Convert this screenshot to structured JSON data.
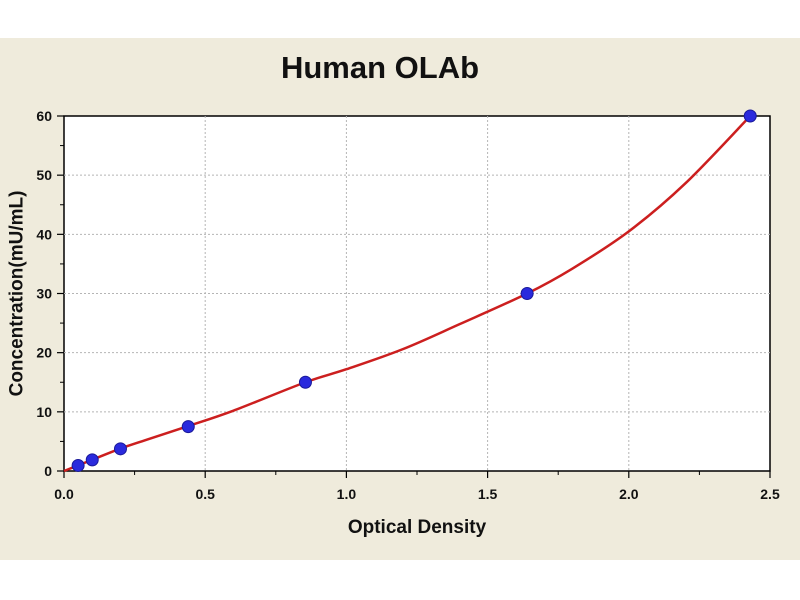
{
  "chart_data": {
    "type": "scatter",
    "title": "Human OLAb",
    "xlabel": "Optical Density",
    "ylabel": "Concentration(mU/mL)",
    "xlim": [
      0,
      2.5
    ],
    "ylim": [
      0,
      60
    ],
    "x_ticks": [
      "0.0",
      "0.5",
      "1.0",
      "1.5",
      "2.0",
      "2.5"
    ],
    "y_ticks": [
      "0",
      "10",
      "20",
      "30",
      "40",
      "50",
      "60"
    ],
    "grid": true,
    "series": [
      {
        "x": [
          0.05,
          0.1,
          0.2,
          0.44,
          0.855,
          1.64,
          2.43
        ],
        "y": [
          0.9375,
          1.875,
          3.75,
          7.5,
          15,
          30,
          60
        ]
      }
    ],
    "fit_curve": {
      "x": [
        0.0,
        0.1,
        0.2,
        0.3,
        0.44,
        0.6,
        0.855,
        1.0,
        1.2,
        1.4,
        1.64,
        1.8,
        2.0,
        2.2,
        2.43
      ],
      "y": [
        0.0,
        1.9,
        3.8,
        5.4,
        7.6,
        10.2,
        15.0,
        17.2,
        20.6,
        24.8,
        30.0,
        34.2,
        40.5,
        48.6,
        60.0
      ]
    },
    "colors": {
      "curve": "#cc1f1f",
      "points": "#2a2add",
      "grid": "#b5b5b5",
      "panel": "#efebdc"
    }
  }
}
